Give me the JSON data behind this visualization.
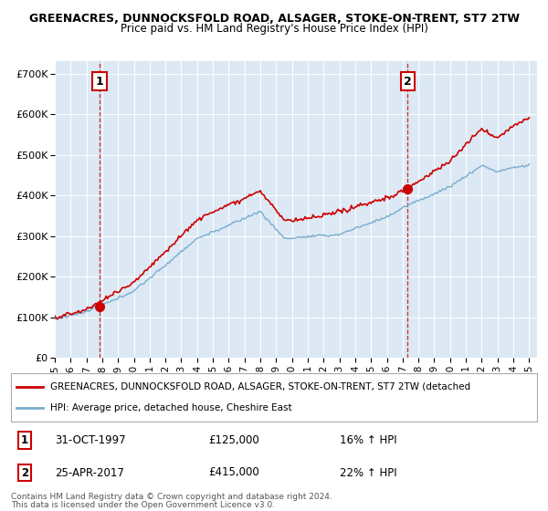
{
  "title_line1": "GREENACRES, DUNNOCKSFOLD ROAD, ALSAGER, STOKE-ON-TRENT, ST7 2TW",
  "title_line2": "Price paid vs. HM Land Registry's House Price Index (HPI)",
  "xlim_start": 1995.0,
  "xlim_end": 2025.5,
  "ylim_bottom": 0,
  "ylim_top": 730000,
  "yticks": [
    0,
    100000,
    200000,
    300000,
    400000,
    500000,
    600000,
    700000
  ],
  "ytick_labels": [
    "£0",
    "£100K",
    "£200K",
    "£300K",
    "£400K",
    "£500K",
    "£600K",
    "£700K"
  ],
  "xticks": [
    1995,
    1996,
    1997,
    1998,
    1999,
    2000,
    2001,
    2002,
    2003,
    2004,
    2005,
    2006,
    2007,
    2008,
    2009,
    2010,
    2011,
    2012,
    2013,
    2014,
    2015,
    2016,
    2017,
    2018,
    2019,
    2020,
    2021,
    2022,
    2023,
    2024,
    2025
  ],
  "marker1_x": 1997.833,
  "marker1_y": 125000,
  "marker1_label": "1",
  "marker1_date": "31-OCT-1997",
  "marker1_price": "£125,000",
  "marker1_hpi": "16% ↑ HPI",
  "marker2_x": 2017.32,
  "marker2_y": 415000,
  "marker2_label": "2",
  "marker2_date": "25-APR-2017",
  "marker2_price": "£415,000",
  "marker2_hpi": "22% ↑ HPI",
  "line_red_color": "#cc0000",
  "line_blue_color": "#7aaccc",
  "marker_box_color": "#cc0000",
  "dashed_vline_color": "#cc0000",
  "legend_label_red": "GREENACRES, DUNNOCKSFOLD ROAD, ALSAGER, STOKE-ON-TRENT, ST7 2TW (detached",
  "legend_label_blue": "HPI: Average price, detached house, Cheshire East",
  "footer1": "Contains HM Land Registry data © Crown copyright and database right 2024.",
  "footer2": "This data is licensed under the Open Government Licence v3.0.",
  "background_color": "#ffffff",
  "plot_bg_color": "#dce9f5",
  "grid_color": "#ffffff"
}
